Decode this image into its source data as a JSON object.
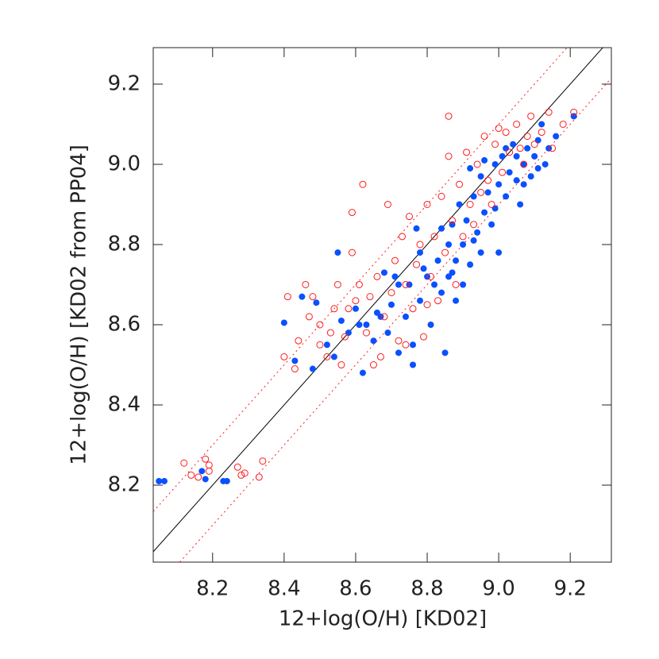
{
  "chart_data": {
    "type": "scatter",
    "x_label": "12+log(O/H) [KD02]",
    "y_label": "12+log(O/H) [KD02 from PP04]",
    "xlim": [
      8.034,
      9.315
    ],
    "ylim": [
      8.008,
      9.291
    ],
    "xticks": [
      8.2,
      8.4,
      8.6,
      8.8,
      {
        "value": 9,
        "label": "9.0"
      },
      9.2
    ],
    "yticks": [
      8.2,
      8.4,
      8.6,
      8.8,
      {
        "value": 9,
        "label": "9.0"
      },
      9.2
    ],
    "series": [
      {
        "color": "#0a50ff",
        "filled": true,
        "x": [
          8.05,
          8.065,
          8.17,
          8.18,
          8.23,
          8.24,
          8.4,
          8.43,
          8.45,
          8.48,
          8.49,
          8.52,
          8.55,
          8.56,
          8.58,
          8.6,
          8.62,
          8.63,
          8.65,
          8.67,
          8.68,
          8.69,
          8.7,
          8.71,
          8.72,
          8.74,
          8.75,
          8.76,
          8.76,
          8.77,
          8.78,
          8.79,
          8.8,
          8.81,
          8.82,
          8.83,
          8.84,
          8.85,
          8.86,
          8.86,
          8.87,
          8.88,
          8.88,
          8.89,
          8.9,
          8.9,
          8.91,
          8.92,
          8.93,
          8.94,
          8.95,
          8.95,
          8.96,
          8.97,
          8.98,
          8.99,
          9.0,
          9.0,
          9.01,
          9.02,
          9.03,
          9.04,
          9.05,
          9.05,
          9.06,
          9.07,
          9.08,
          9.09,
          9.1,
          9.11,
          9.12,
          9.13,
          9.14,
          9.16,
          9.21,
          8.92,
          8.96,
          9.02,
          8.84,
          8.78,
          8.72,
          8.66,
          8.61,
          8.54,
          8.87,
          8.93,
          8.99,
          9.07,
          9.11
        ],
        "values": [
          8.21,
          8.21,
          8.235,
          8.215,
          8.21,
          8.21,
          8.605,
          8.51,
          8.67,
          8.49,
          8.655,
          8.55,
          8.78,
          8.61,
          8.58,
          8.64,
          8.48,
          8.6,
          8.56,
          8.62,
          8.73,
          8.58,
          8.65,
          8.72,
          8.53,
          8.62,
          8.7,
          8.55,
          8.5,
          8.84,
          8.66,
          8.74,
          8.72,
          8.6,
          8.7,
          8.76,
          8.68,
          8.53,
          8.8,
          8.72,
          8.85,
          8.76,
          8.66,
          8.9,
          8.8,
          8.7,
          8.86,
          8.75,
          8.92,
          8.83,
          8.78,
          8.97,
          8.88,
          8.93,
          8.85,
          9.0,
          8.95,
          8.78,
          9.02,
          8.92,
          8.98,
          9.05,
          8.96,
          9.02,
          8.9,
          9.0,
          9.04,
          8.97,
          9.02,
          9.06,
          9.1,
          9.0,
          9.04,
          9.07,
          9.12,
          8.99,
          9.01,
          9.04,
          8.84,
          8.78,
          8.7,
          8.63,
          8.6,
          8.52,
          8.73,
          8.81,
          8.89,
          8.95,
          8.99
        ]
      },
      {
        "color": "#ff1a1a",
        "filled": false,
        "x": [
          8.12,
          8.14,
          8.16,
          8.18,
          8.19,
          8.19,
          8.27,
          8.28,
          8.29,
          8.33,
          8.34,
          8.4,
          8.41,
          8.43,
          8.44,
          8.46,
          8.47,
          8.48,
          8.5,
          8.5,
          8.52,
          8.54,
          8.55,
          8.56,
          8.57,
          8.59,
          8.59,
          8.6,
          8.61,
          8.62,
          8.63,
          8.64,
          8.65,
          8.66,
          8.68,
          8.69,
          8.7,
          8.71,
          8.72,
          8.73,
          8.74,
          8.75,
          8.76,
          8.77,
          8.78,
          8.79,
          8.8,
          8.81,
          8.82,
          8.83,
          8.84,
          8.85,
          8.86,
          8.86,
          8.87,
          8.88,
          8.89,
          8.9,
          8.91,
          8.92,
          8.93,
          8.94,
          8.95,
          8.96,
          8.97,
          8.98,
          8.99,
          9.0,
          9.01,
          9.02,
          9.03,
          9.05,
          9.06,
          9.07,
          9.08,
          9.09,
          9.1,
          9.12,
          9.14,
          9.15,
          9.18,
          9.21,
          8.58,
          8.53,
          8.67,
          8.74,
          8.8
        ],
        "values": [
          8.255,
          8.225,
          8.22,
          8.265,
          8.25,
          8.235,
          8.245,
          8.225,
          8.23,
          8.22,
          8.26,
          8.52,
          8.67,
          8.49,
          8.56,
          8.7,
          8.62,
          8.67,
          8.6,
          8.55,
          8.52,
          8.64,
          8.7,
          8.5,
          8.57,
          8.78,
          8.88,
          8.66,
          8.7,
          8.95,
          8.58,
          8.67,
          8.5,
          8.72,
          8.62,
          8.9,
          8.68,
          8.76,
          8.56,
          8.82,
          8.7,
          8.87,
          8.64,
          8.75,
          8.8,
          8.57,
          8.9,
          8.72,
          8.82,
          8.66,
          8.92,
          8.78,
          9.12,
          9.02,
          8.86,
          8.7,
          8.95,
          8.82,
          9.03,
          8.9,
          8.85,
          9.0,
          8.93,
          9.07,
          8.96,
          8.9,
          9.05,
          9.09,
          8.98,
          9.08,
          9.03,
          9.1,
          9.04,
          9.0,
          9.07,
          9.12,
          9.05,
          9.08,
          9.13,
          9.04,
          9.1,
          9.13,
          8.64,
          8.58,
          8.52,
          8.55,
          8.65
        ]
      }
    ],
    "reference_lines": [
      {
        "color": "#000000",
        "dashed": false,
        "x": [
          8.034,
          9.315
        ],
        "values": [
          8.034,
          9.315
        ]
      },
      {
        "color": "#ff1a1a",
        "dashed": true,
        "x": [
          8.034,
          9.2
        ],
        "values": [
          8.134,
          9.3
        ]
      },
      {
        "color": "#ff1a1a",
        "dashed": true,
        "x": [
          8.108,
          9.315
        ],
        "values": [
          8.008,
          9.215
        ]
      }
    ]
  }
}
